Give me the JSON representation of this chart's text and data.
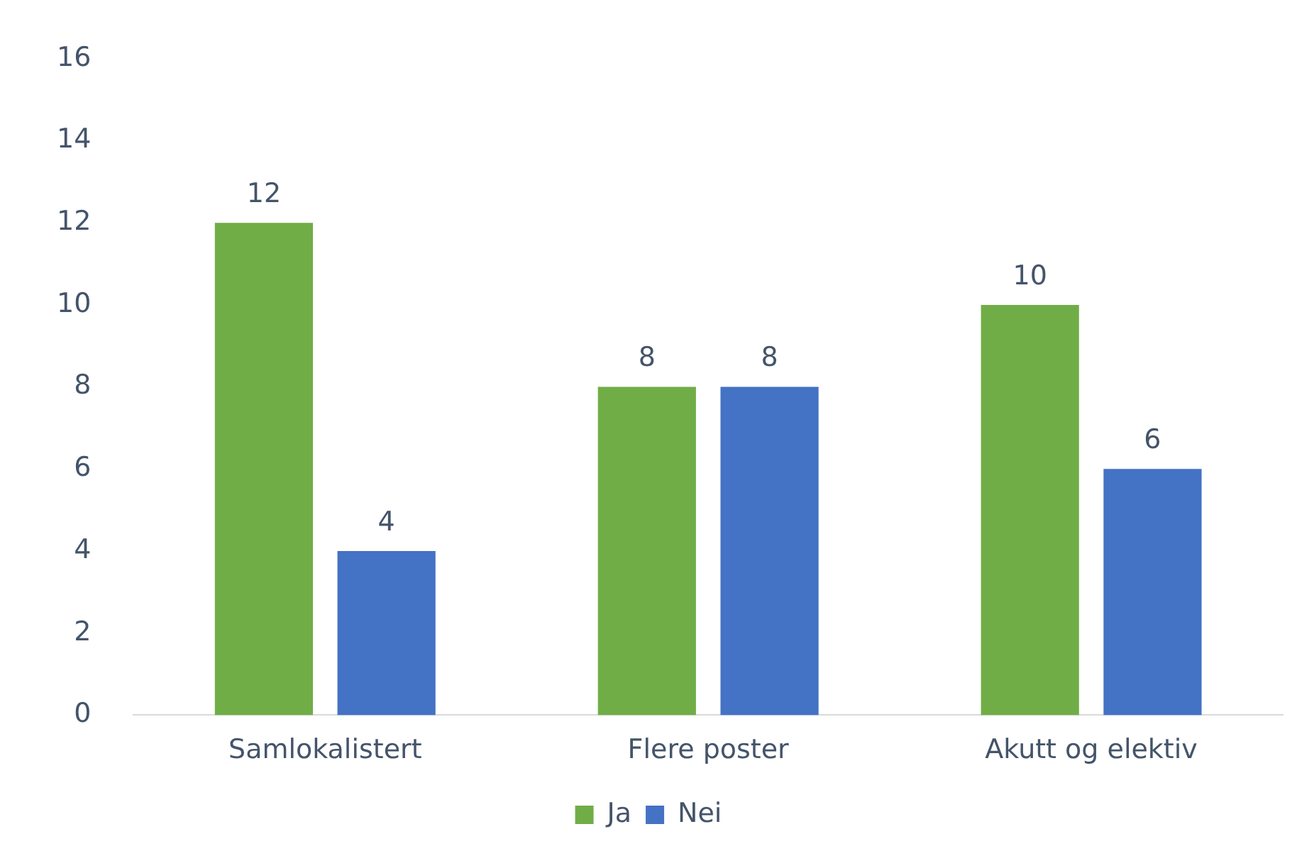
{
  "chart_data": {
    "type": "bar",
    "categories": [
      "Samlokalistert",
      "Flere poster",
      "Akutt og elektiv"
    ],
    "series": [
      {
        "name": "Ja",
        "color": "#70ad47",
        "values": [
          12,
          8,
          10
        ]
      },
      {
        "name": "Nei",
        "color": "#4472c4",
        "values": [
          4,
          8,
          6
        ]
      }
    ],
    "ylim": [
      0,
      16
    ],
    "yticks": [
      0,
      2,
      4,
      6,
      8,
      10,
      12,
      14,
      16
    ],
    "grid": false,
    "legend": "bottom",
    "data_labels": true
  }
}
